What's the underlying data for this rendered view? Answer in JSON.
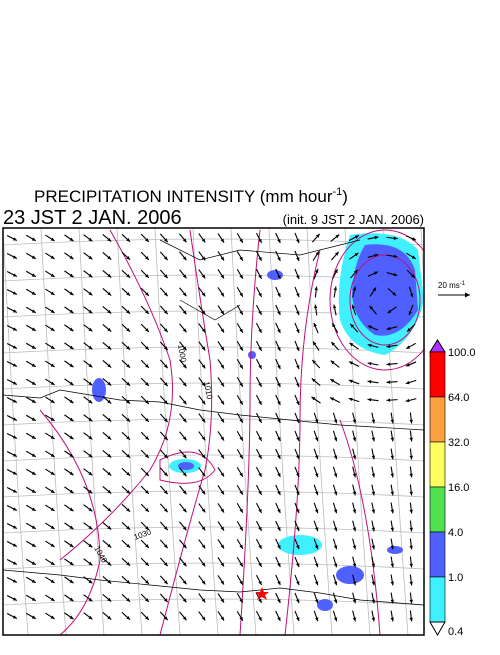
{
  "header": {
    "title": "PRECIPITATION INTENSITY (mm hour",
    "title_exponent": "-1",
    "title_close": ")",
    "valid_time": "23 JST 2 JAN. 2006",
    "init_time": "(init. 9 JST 2 JAN. 2006)"
  },
  "wind_scale": {
    "label": "20 ms",
    "exponent": "-1"
  },
  "contour_labels": [
    "1000",
    "1010",
    "1030",
    "1040"
  ],
  "colorbar": {
    "levels": [
      "100.0",
      "64.0",
      "32.0",
      "16.0",
      "4.0",
      "1.0",
      "0.4"
    ],
    "colors": [
      "#ff0000",
      "#ffa040",
      "#ffff60",
      "#50e050",
      "#5060ff",
      "#40f0ff"
    ],
    "over_color": "#b030ff",
    "under_color": "#ffffff"
  }
}
